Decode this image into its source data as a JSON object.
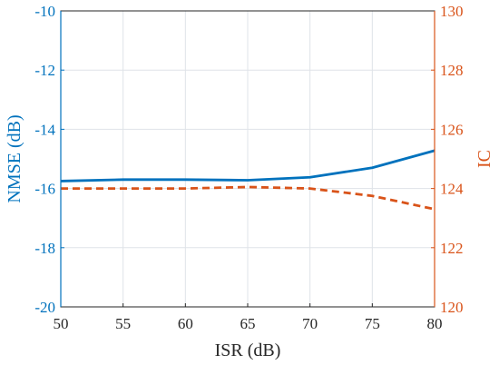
{
  "chart_data": {
    "type": "line",
    "title": "",
    "xlabel": "ISR (dB)",
    "ylabel_left": "NMSE (dB)",
    "ylabel_right": "IC",
    "x": [
      50,
      55,
      60,
      65,
      70,
      75,
      80
    ],
    "xlim": [
      50,
      80
    ],
    "xticks": [
      "50",
      "55",
      "60",
      "65",
      "70",
      "75",
      "80"
    ],
    "ylim_left": [
      -20,
      -10
    ],
    "yticks_left": [
      "-20",
      "-18",
      "-16",
      "-14",
      "-12",
      "-10"
    ],
    "ylim_right": [
      120,
      130
    ],
    "yticks_right": [
      "120",
      "122",
      "124",
      "126",
      "128",
      "130"
    ],
    "grid": true,
    "series": [
      {
        "axis": "left",
        "style": "solid",
        "color": "#0072BD",
        "values": [
          -15.75,
          -15.7,
          -15.7,
          -15.72,
          -15.62,
          -15.3,
          -14.72
        ]
      },
      {
        "axis": "right",
        "style": "dashed",
        "color": "#D95319",
        "values": [
          124.0,
          124.0,
          124.0,
          124.05,
          124.0,
          123.75,
          123.3
        ]
      }
    ]
  }
}
